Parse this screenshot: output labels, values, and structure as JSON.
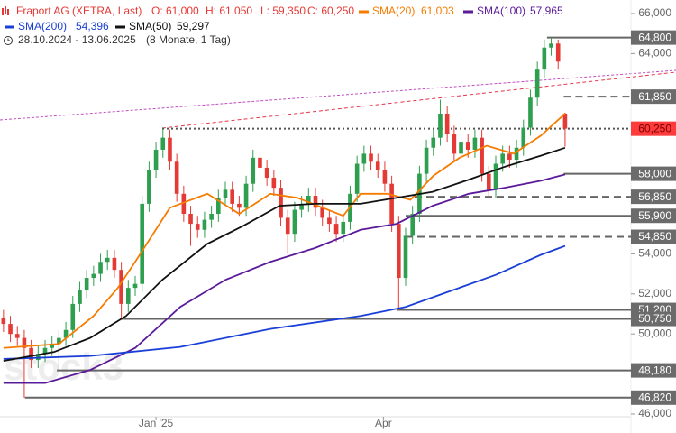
{
  "chart_data": {
    "type": "candlestick",
    "instrument": "Fraport AG (XETRA, Last)",
    "ohlc_legend": [
      "O: 61,000",
      "H: 61,050",
      "L: 59,350",
      "C: 60,250"
    ],
    "period": "28.10.2024 - 13.06.2025",
    "period_note": "(8 Monate, 1 Tag)",
    "watermark": "stock3",
    "up_color": "#2e9e4f",
    "down_color": "#e53935",
    "candles": [
      [
        50800,
        51200,
        50100,
        50500
      ],
      [
        50500,
        50900,
        49600,
        50000
      ],
      [
        50000,
        50400,
        49400,
        49800
      ],
      [
        49800,
        50200,
        46820,
        49300
      ],
      [
        49300,
        49700,
        48300,
        48700
      ],
      [
        48700,
        49400,
        48300,
        49000
      ],
      [
        49000,
        49700,
        48600,
        49300
      ],
      [
        49300,
        49900,
        48900,
        49500
      ],
      [
        49500,
        50200,
        48180,
        49800
      ],
      [
        49800,
        50600,
        49400,
        50200
      ],
      [
        50200,
        51900,
        49800,
        51500
      ],
      [
        51500,
        52600,
        51100,
        52200
      ],
      [
        52200,
        53200,
        51800,
        52800
      ],
      [
        52800,
        53400,
        52400,
        53000
      ],
      [
        53000,
        54000,
        52600,
        53600
      ],
      [
        53600,
        54200,
        53200,
        53800
      ],
      [
        53800,
        54200,
        52800,
        53200
      ],
      [
        53200,
        53600,
        50750,
        51500
      ],
      [
        51500,
        52700,
        51100,
        52300
      ],
      [
        52300,
        52900,
        51900,
        52500
      ],
      [
        52500,
        56900,
        52100,
        56500
      ],
      [
        56500,
        58600,
        56100,
        58200
      ],
      [
        58200,
        59600,
        57800,
        59200
      ],
      [
        59200,
        60250,
        58800,
        59800
      ],
      [
        59800,
        60200,
        58200,
        58600
      ],
      [
        58600,
        59000,
        56600,
        57000
      ],
      [
        57000,
        57400,
        55600,
        56000
      ],
      [
        56000,
        56400,
        54400,
        55500
      ],
      [
        55500,
        55900,
        54800,
        55200
      ],
      [
        55200,
        56100,
        54800,
        55700
      ],
      [
        55700,
        56400,
        55300,
        56000
      ],
      [
        56000,
        57200,
        55600,
        56800
      ],
      [
        56800,
        57600,
        56400,
        57200
      ],
      [
        57200,
        57600,
        56100,
        56500
      ],
      [
        56500,
        56900,
        55900,
        56300
      ],
      [
        56300,
        57900,
        55900,
        57500
      ],
      [
        57500,
        59200,
        57100,
        58800
      ],
      [
        58800,
        59200,
        57900,
        58300
      ],
      [
        58300,
        58700,
        57400,
        57800
      ],
      [
        57800,
        58200,
        56900,
        57300
      ],
      [
        57300,
        57700,
        55400,
        55800
      ],
      [
        55800,
        56200,
        54000,
        55000
      ],
      [
        55000,
        56600,
        54600,
        56200
      ],
      [
        56200,
        56900,
        55800,
        56500
      ],
      [
        56500,
        57300,
        56100,
        56900
      ],
      [
        56900,
        57300,
        55900,
        56300
      ],
      [
        56300,
        56700,
        55400,
        55800
      ],
      [
        55800,
        56200,
        55100,
        55500
      ],
      [
        55500,
        55900,
        54600,
        55000
      ],
      [
        55000,
        56000,
        54600,
        55600
      ],
      [
        55600,
        57400,
        55200,
        57000
      ],
      [
        57000,
        58900,
        56600,
        58500
      ],
      [
        58500,
        59400,
        58100,
        59000
      ],
      [
        59000,
        59400,
        58200,
        58600
      ],
      [
        58600,
        59000,
        57800,
        58200
      ],
      [
        58200,
        58600,
        57100,
        57500
      ],
      [
        57500,
        57900,
        55100,
        55500
      ],
      [
        55500,
        55900,
        51200,
        52800
      ],
      [
        52800,
        55300,
        52400,
        54900
      ],
      [
        54900,
        56400,
        54500,
        56000
      ],
      [
        56000,
        58400,
        55600,
        58000
      ],
      [
        58000,
        59700,
        57600,
        59300
      ],
      [
        59300,
        60200,
        58900,
        59800
      ],
      [
        59800,
        61700,
        59400,
        61000
      ],
      [
        61000,
        61400,
        59600,
        60000
      ],
      [
        60000,
        60400,
        58600,
        59000
      ],
      [
        59000,
        60000,
        58600,
        59600
      ],
      [
        59600,
        60000,
        58800,
        59200
      ],
      [
        59200,
        60200,
        58800,
        59800
      ],
      [
        59800,
        60200,
        57600,
        58000
      ],
      [
        58000,
        58400,
        56850,
        57200
      ],
      [
        57200,
        58900,
        56800,
        58500
      ],
      [
        58500,
        59400,
        58100,
        59000
      ],
      [
        59000,
        59400,
        58300,
        58700
      ],
      [
        58700,
        59700,
        58300,
        59300
      ],
      [
        59300,
        60700,
        58900,
        60300
      ],
      [
        60300,
        62200,
        59900,
        61800
      ],
      [
        61800,
        63600,
        61400,
        63200
      ],
      [
        63200,
        64700,
        62800,
        64300
      ],
      [
        64300,
        64800,
        63900,
        64500
      ],
      [
        64500,
        64700,
        63200,
        63600
      ],
      [
        61000,
        61050,
        59350,
        60250
      ]
    ],
    "series": [
      {
        "name": "SMA(20)",
        "last_label": "61,003",
        "color": "#f57c00",
        "x": [
          0,
          8,
          13,
          16.5,
          19,
          24,
          29.4,
          34,
          38.5,
          42.4,
          49,
          51.5,
          55.4,
          58.7,
          62,
          65.8,
          69.7,
          73.6,
          77.5,
          81
        ],
        "values": [
          49300,
          49500,
          50900,
          52300,
          53600,
          56300,
          57000,
          56000,
          57000,
          56800,
          55900,
          57000,
          57000,
          56700,
          57900,
          58800,
          59400,
          59000,
          59900,
          61003
        ]
      },
      {
        "name": "SMA(100)",
        "last_label": "57,965",
        "color": "#5b1a9a",
        "x": [
          0,
          6,
          12.5,
          19,
          25.5,
          32,
          38.5,
          45,
          51.5,
          56.7,
          61.9,
          67.1,
          72.3,
          77.5,
          81
        ],
        "values": [
          47550,
          47550,
          48200,
          49300,
          51350,
          52700,
          53600,
          54300,
          55200,
          55500,
          56400,
          57000,
          57300,
          57650,
          57965
        ]
      },
      {
        "name": "SMA(200)",
        "last_label": "54,396",
        "color": "#1a3fd6",
        "x": [
          0,
          12.5,
          25.5,
          38.5,
          51.5,
          58,
          64.5,
          71,
          77.5,
          81
        ],
        "values": [
          48750,
          48900,
          49350,
          50250,
          50900,
          51350,
          52150,
          52950,
          53950,
          54396
        ]
      },
      {
        "name": "SMA(50)",
        "last_label": "59,297",
        "color": "#111111",
        "x": [
          0,
          7.3,
          12.5,
          17.7,
          22.9,
          29.4,
          34.6,
          39.8,
          45,
          51.5,
          56.7,
          61.9,
          67.1,
          72.3,
          77.5,
          81
        ],
        "values": [
          48650,
          49100,
          49800,
          50900,
          52700,
          54500,
          55400,
          56400,
          56500,
          56500,
          56800,
          57100,
          57700,
          58350,
          58900,
          59297
        ]
      }
    ],
    "levels": [
      {
        "value": 64800,
        "label": "64,800",
        "from": 78.4,
        "style": "solid"
      },
      {
        "value": 61850,
        "label": "61,850",
        "from": 80.8,
        "style": "dashed"
      },
      {
        "value": 60250,
        "label": "60,250",
        "from": 22.9,
        "style": "dotted",
        "color": "#ff3b3b"
      },
      {
        "value": 58000,
        "label": "58,000",
        "from": 80.8,
        "style": "solid"
      },
      {
        "value": 56850,
        "label": "56,850",
        "from": 59.3,
        "style": "dashed"
      },
      {
        "value": 55900,
        "label": "55,900",
        "from": 58,
        "style": "solid"
      },
      {
        "value": 54850,
        "label": "54,850",
        "from": 58,
        "style": "dashed"
      },
      {
        "value": 51200,
        "label": "51,200",
        "from": 56.7,
        "style": "solid"
      },
      {
        "value": 50750,
        "label": "50,750",
        "from": 16.8,
        "style": "solid"
      },
      {
        "value": 48180,
        "label": "48,180",
        "from": 7.7,
        "style": "solid"
      },
      {
        "value": 46820,
        "label": "46,820",
        "from": 3.1,
        "style": "solid"
      }
    ],
    "xlim": [
      -0.5,
      90.5
    ],
    "xticks": [
      {
        "value": 22,
        "label": "Jan '25"
      },
      {
        "value": 54.8,
        "label": "Apr"
      }
    ],
    "ylim": [
      46000,
      66000
    ],
    "yticks": [
      {
        "value": 46000,
        "label": "46,000"
      },
      {
        "value": 50000,
        "label": "50,000"
      },
      {
        "value": 52000,
        "label": "52,000"
      },
      {
        "value": 54000,
        "label": "54,000"
      },
      {
        "value": 64000,
        "label": "64,000"
      },
      {
        "value": 66000,
        "label": "66,000"
      }
    ]
  }
}
